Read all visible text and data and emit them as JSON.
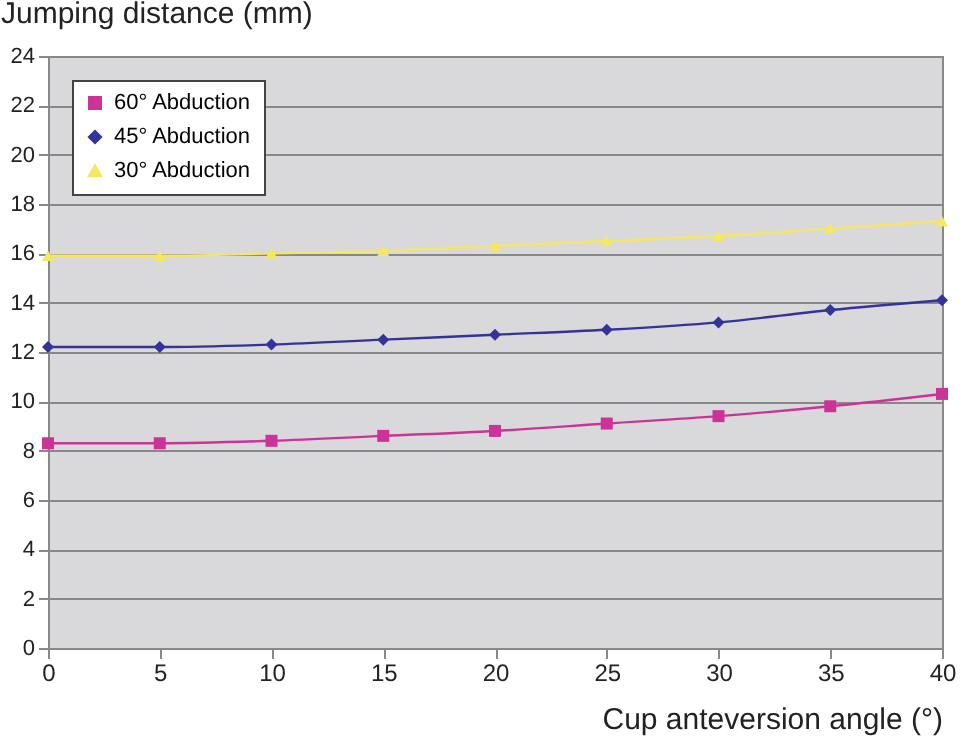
{
  "chart_data": {
    "type": "line",
    "ylabel": "Jumping distance (mm)",
    "xlabel": "Cup anteversion angle (°)",
    "x": [
      0,
      5,
      10,
      15,
      20,
      25,
      30,
      35,
      40
    ],
    "series": [
      {
        "name": "60° Abduction",
        "color": "#cc3399",
        "marker": "square",
        "values": [
          8.3,
          8.3,
          8.4,
          8.6,
          8.8,
          9.1,
          9.4,
          9.8,
          10.3
        ]
      },
      {
        "name": "45° Abduction",
        "color": "#333399",
        "marker": "diamond",
        "values": [
          12.2,
          12.2,
          12.3,
          12.5,
          12.7,
          12.9,
          13.2,
          13.7,
          14.1
        ]
      },
      {
        "name": "30° Abduction",
        "color": "#f5e663",
        "marker": "triangle",
        "values": [
          15.9,
          15.9,
          16.0,
          16.1,
          16.3,
          16.5,
          16.7,
          17.0,
          17.3
        ]
      }
    ],
    "xlim": [
      0,
      40
    ],
    "xticks": [
      0,
      5,
      10,
      15,
      20,
      25,
      30,
      35,
      40
    ],
    "ylim": [
      0,
      24
    ],
    "yticks": [
      0,
      2,
      4,
      6,
      8,
      10,
      12,
      14,
      16,
      18,
      20,
      22,
      24
    ],
    "grid": "y",
    "legend": "top left",
    "line_style": "solid"
  }
}
